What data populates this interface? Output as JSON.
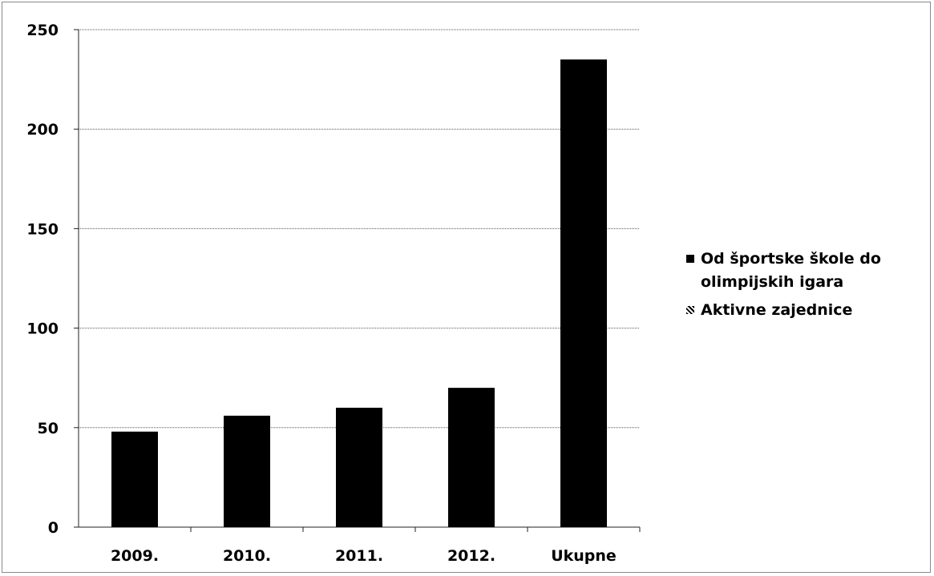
{
  "chart_data": {
    "type": "bar",
    "title": "",
    "xlabel": "",
    "ylabel": "",
    "categories": [
      "2009.",
      "2010.",
      "2011.",
      "2012.",
      "Ukupne"
    ],
    "series": [
      {
        "name": "Od športske škole do olimpijskih igara",
        "values": [
          48,
          56,
          60,
          70,
          235
        ],
        "color": "#000000"
      },
      {
        "name": "Aktivne zajednice",
        "values": [
          0,
          0,
          0,
          0,
          0
        ],
        "color": "#000000"
      }
    ],
    "y_ticks": [
      "0",
      "50",
      "100",
      "150",
      "200",
      "250"
    ],
    "ylim": [
      0,
      250
    ],
    "grid": true,
    "legend_position": "right"
  }
}
